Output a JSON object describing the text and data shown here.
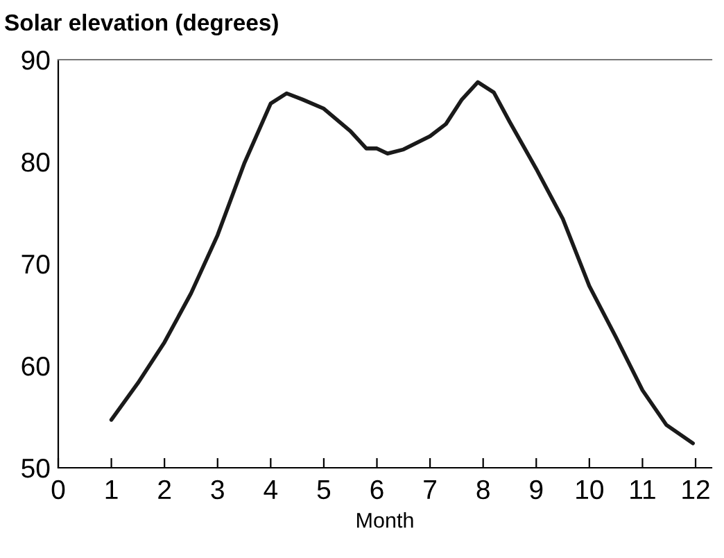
{
  "chart_data": {
    "type": "line",
    "title": "Solar elevation (degrees)",
    "xlabel": "Month",
    "x": [
      1,
      1.5,
      2,
      2.5,
      3,
      3.5,
      4,
      4.3,
      4.6,
      5,
      5.5,
      5.8,
      6,
      6.2,
      6.5,
      7,
      7.3,
      7.6,
      7.9,
      8.2,
      8.5,
      9,
      9.5,
      10,
      10.5,
      11,
      11.45,
      11.95
    ],
    "series": [
      {
        "color": "#1a1a1a",
        "values": [
          54.7,
          58.3,
          62.3,
          67.1,
          72.8,
          79.8,
          85.7,
          86.7,
          86.1,
          85.2,
          83.0,
          81.3,
          81.3,
          80.8,
          81.2,
          82.5,
          83.7,
          86.1,
          87.8,
          86.8,
          83.9,
          79.3,
          74.4,
          67.8,
          62.8,
          57.6,
          54.2,
          52.4
        ]
      }
    ],
    "xlim": [
      0,
      12.3
    ],
    "xticks": [
      0,
      1,
      2,
      3,
      4,
      5,
      6,
      7,
      8,
      9,
      10,
      11,
      12
    ],
    "ylim": [
      50,
      90
    ],
    "yticks": [
      50,
      60,
      70,
      80,
      90
    ],
    "grid": false,
    "legend": false,
    "marker": "none",
    "line_style": "solid"
  }
}
